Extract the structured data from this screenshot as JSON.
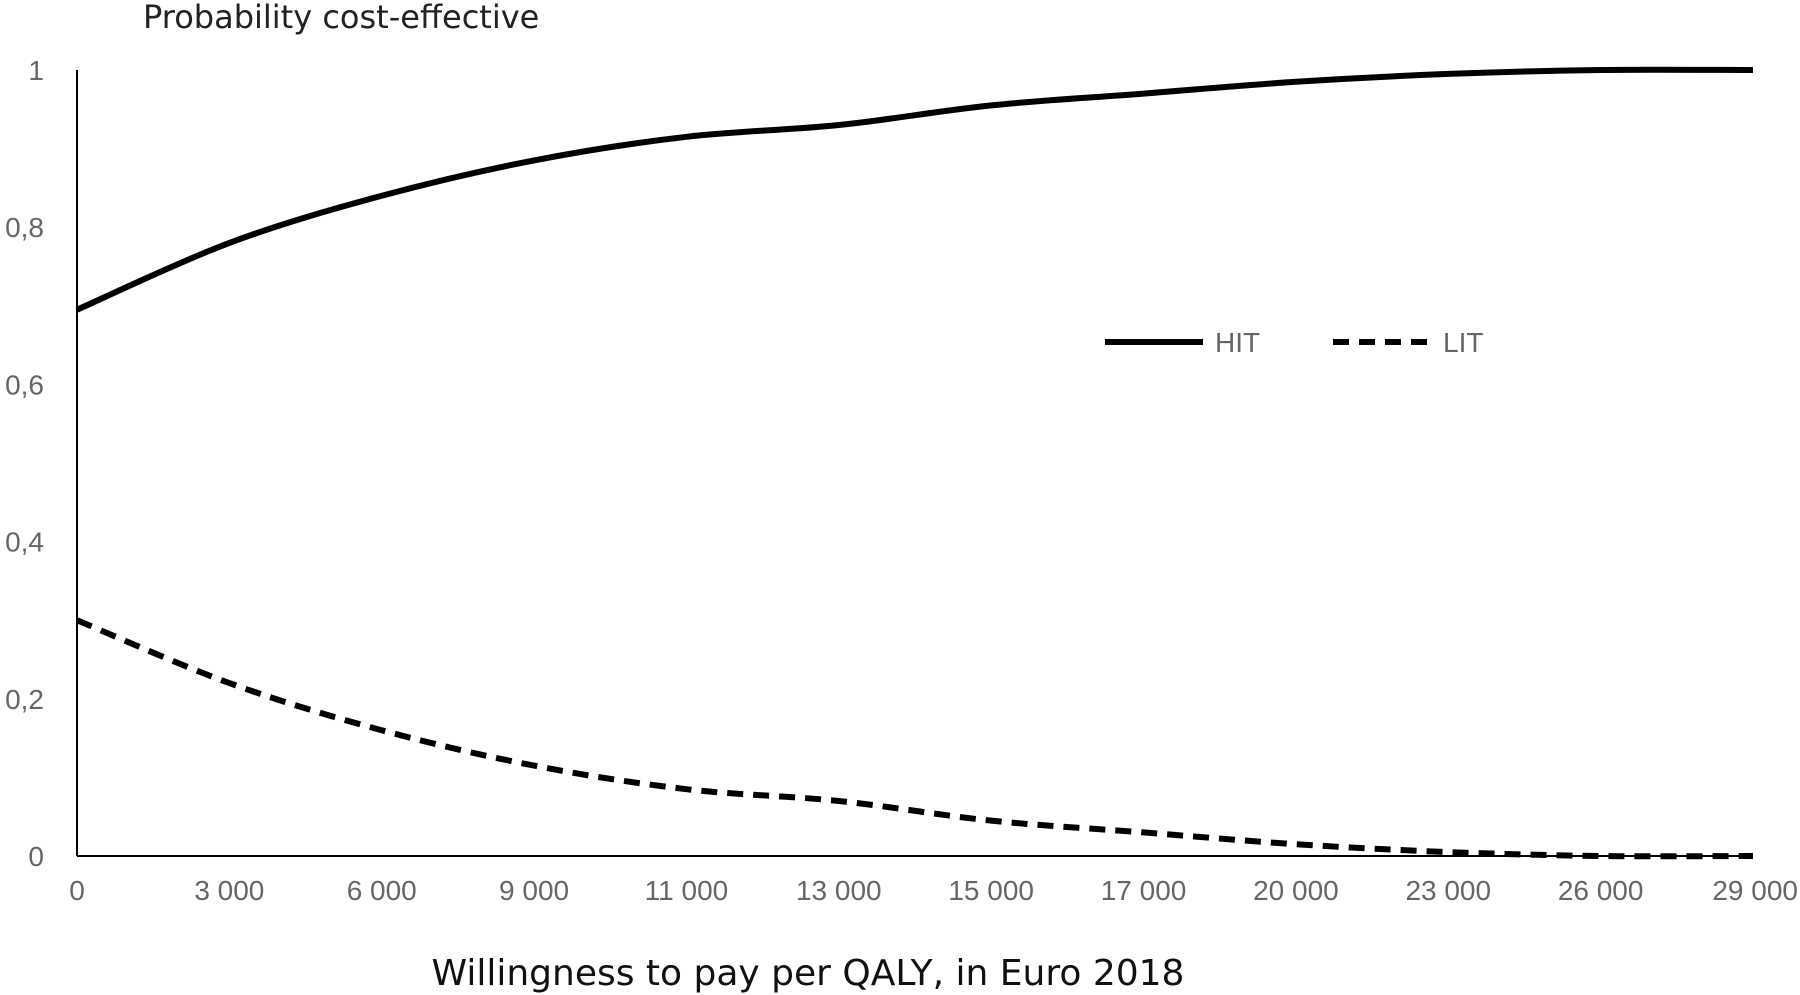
{
  "chart_data": {
    "type": "line",
    "ylabel": "Probability cost-effective",
    "xlabel": "Willingness to pay per QALY, in Euro 2018",
    "categories": [
      "0",
      "3 000",
      "6 000",
      "9 000",
      "11 000",
      "13 000",
      "15 000",
      "17 000",
      "20 000",
      "23 000",
      "26 000",
      "29 000"
    ],
    "y_ticks": [
      "0",
      "0,2",
      "0,4",
      "0,6",
      "0,8",
      "1"
    ],
    "ylim": [
      0,
      1
    ],
    "legend_position": "center-right",
    "grid": false,
    "series": [
      {
        "name": "HIT",
        "style": "solid",
        "color": "#000000",
        "values": [
          0.695,
          0.78,
          0.84,
          0.885,
          0.915,
          0.93,
          0.955,
          0.97,
          0.985,
          0.995,
          1.0,
          1.0
        ]
      },
      {
        "name": "LIT",
        "style": "dashed",
        "color": "#000000",
        "values": [
          0.3,
          0.22,
          0.16,
          0.115,
          0.085,
          0.07,
          0.045,
          0.03,
          0.015,
          0.005,
          0.0,
          0.0
        ]
      }
    ]
  }
}
